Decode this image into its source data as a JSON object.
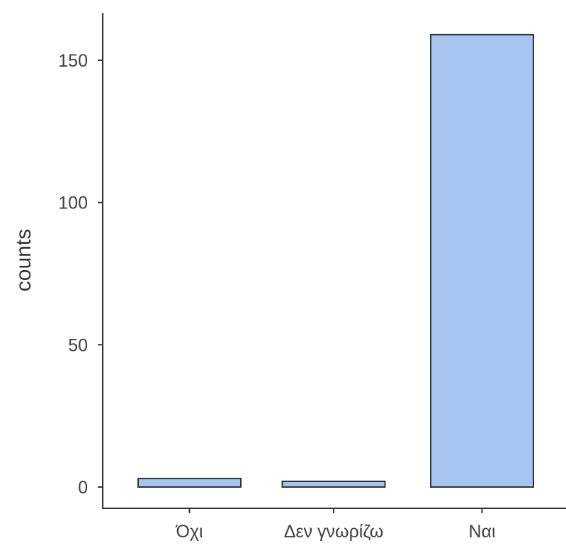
{
  "chart_data": {
    "type": "bar",
    "categories": [
      "Όχι",
      "Δεν γνωρίζω",
      "Ναι"
    ],
    "values": [
      3,
      2,
      159
    ],
    "xlabel": "",
    "ylabel": "counts",
    "ylim": [
      0,
      165
    ],
    "yticks": [
      0,
      50,
      100,
      150
    ],
    "grid": false,
    "bar_color": "#a6c4f0",
    "bar_edge_color": "#333333"
  }
}
